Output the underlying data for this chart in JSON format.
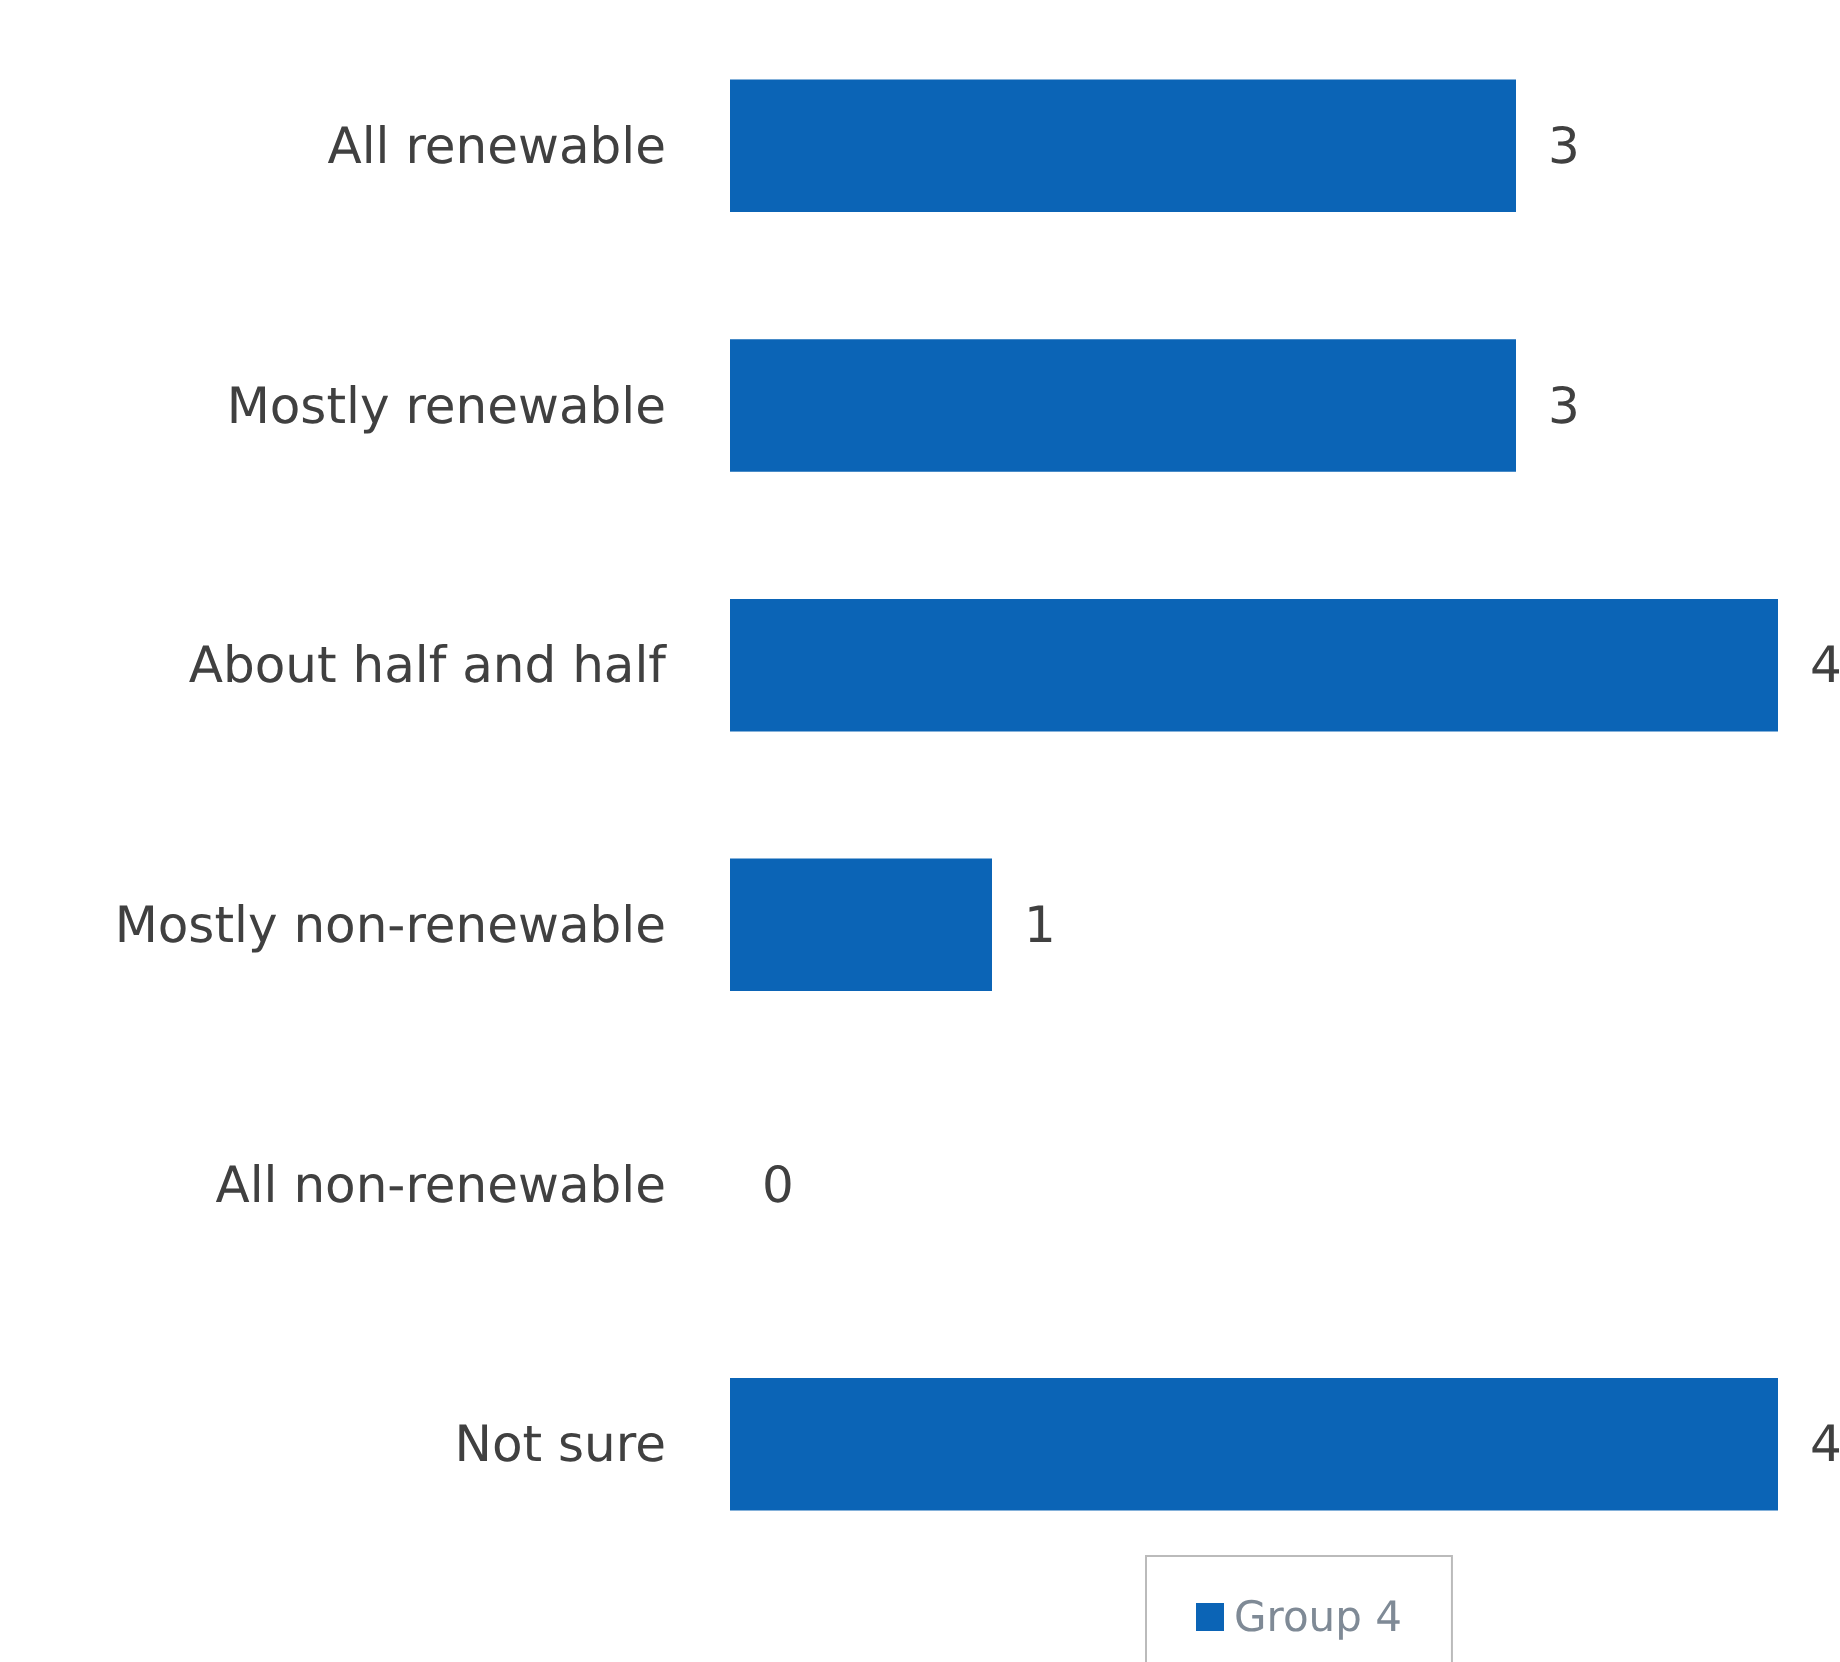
{
  "chart_data": {
    "type": "bar",
    "orientation": "horizontal",
    "categories": [
      "All renewable",
      "Mostly renewable",
      "About half and half",
      "Mostly non-renewable",
      "All non-renewable",
      "Not sure"
    ],
    "series": [
      {
        "name": "Group 4",
        "color": "#0b64b6",
        "values": [
          3,
          3,
          4,
          1,
          0,
          4
        ]
      }
    ],
    "xlim": [
      0,
      4
    ],
    "data_labels": true,
    "legend": "bottom"
  }
}
